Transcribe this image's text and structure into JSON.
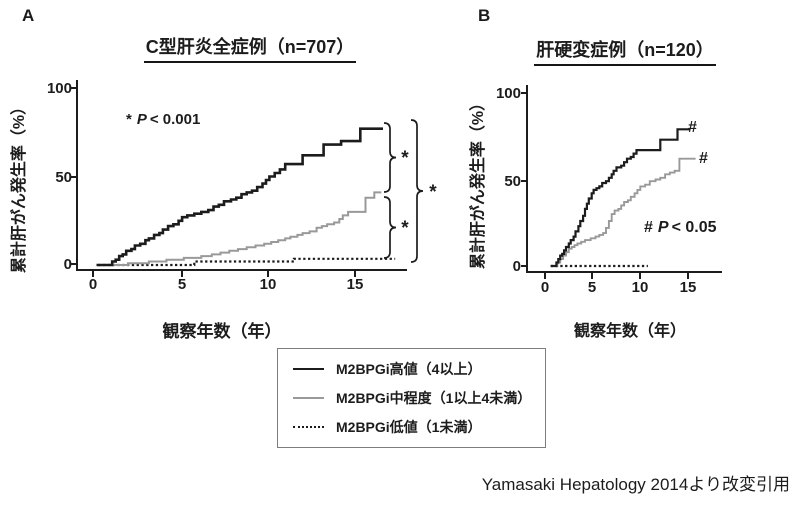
{
  "panel_a": {
    "letter": "A",
    "title": "C型肝炎全症例（n=707）",
    "p_note": {
      "marker": "*",
      "symbol": "P",
      "comparison": "< 0.001"
    },
    "bracket_stars": [
      "*",
      "*",
      "*"
    ]
  },
  "panel_b": {
    "letter": "B",
    "title": "肝硬変症例（n=120）",
    "p_note": {
      "marker": "#",
      "symbol": "P",
      "comparison": "< 0.05"
    },
    "curve_marks": {
      "high": "#",
      "mid": "#"
    }
  },
  "axes": {
    "x_label": "観察年数（年）",
    "y_label": "累計肝がん発生率（%）",
    "x_ticks": [
      "0",
      "5",
      "10",
      "15"
    ],
    "y_ticks": [
      "100",
      "50",
      "0"
    ]
  },
  "legend": {
    "items": [
      {
        "label": "M2BPGi高値（4以上）",
        "style": "solid-black"
      },
      {
        "label": "M2BPGi中程度（1以上4未満）",
        "style": "solid-gray"
      },
      {
        "label": "M2BPGi低値（1未満）",
        "style": "dotted-black"
      }
    ]
  },
  "citation": "Yamasaki Hepatology 2014より改変引用",
  "colors": {
    "black": "#1c1c1c",
    "gray": "#999999",
    "legend_border": "#7d7d7d"
  },
  "chart_data": [
    {
      "panel": "A",
      "type": "line",
      "subtype": "kaplan_meier_step",
      "title": "C型肝炎全症例（n=707）",
      "n": 707,
      "xlabel": "観察年数（年）",
      "ylabel": "累計肝がん発生率（%）",
      "xlim": [
        0,
        18
      ],
      "ylim": [
        0,
        100
      ],
      "xticks": [
        0,
        5,
        10,
        15
      ],
      "yticks": [
        0,
        50,
        100
      ],
      "grid": false,
      "legend_position": "below-figure",
      "annotations": [
        "* P < 0.001",
        "brackets: high vs mid *, mid vs low *, high vs low *"
      ],
      "series": [
        {
          "name": "M2BPGi高値（4以上）",
          "style": "solid",
          "color": "#1c1c1c",
          "points": [
            [
              0.2,
              0
            ],
            [
              0.9,
              0
            ],
            [
              1.1,
              2
            ],
            [
              1.3,
              3
            ],
            [
              1.5,
              5
            ],
            [
              1.7,
              6
            ],
            [
              1.9,
              8
            ],
            [
              2.2,
              9
            ],
            [
              2.4,
              11
            ],
            [
              2.7,
              12
            ],
            [
              3.0,
              14
            ],
            [
              3.2,
              15
            ],
            [
              3.5,
              17
            ],
            [
              3.8,
              18
            ],
            [
              4.0,
              20
            ],
            [
              4.3,
              22
            ],
            [
              4.6,
              23
            ],
            [
              4.9,
              25
            ],
            [
              5.1,
              27
            ],
            [
              5.4,
              28
            ],
            [
              5.8,
              29
            ],
            [
              6.2,
              30
            ],
            [
              6.6,
              31
            ],
            [
              6.9,
              33
            ],
            [
              7.2,
              34
            ],
            [
              7.5,
              36
            ],
            [
              7.9,
              37
            ],
            [
              8.2,
              38
            ],
            [
              8.5,
              40
            ],
            [
              8.8,
              41
            ],
            [
              9.1,
              42
            ],
            [
              9.4,
              44
            ],
            [
              9.7,
              46
            ],
            [
              9.9,
              48
            ],
            [
              10.1,
              50
            ],
            [
              10.4,
              52
            ],
            [
              10.7,
              54
            ],
            [
              11.0,
              57
            ],
            [
              12.0,
              57
            ],
            [
              12.0,
              62
            ],
            [
              13.2,
              62
            ],
            [
              13.2,
              68
            ],
            [
              14.2,
              68
            ],
            [
              14.2,
              70
            ],
            [
              15.3,
              70
            ],
            [
              15.3,
              77
            ],
            [
              16.6,
              77
            ]
          ]
        },
        {
          "name": "M2BPGi中程度（1以上4未満）",
          "style": "solid",
          "color": "#999999",
          "points": [
            [
              0.4,
              0
            ],
            [
              2.0,
              1
            ],
            [
              3.2,
              2
            ],
            [
              4.2,
              3
            ],
            [
              5.2,
              4
            ],
            [
              6.2,
              5
            ],
            [
              6.8,
              6
            ],
            [
              7.3,
              7
            ],
            [
              7.8,
              8
            ],
            [
              8.3,
              9
            ],
            [
              8.8,
              10
            ],
            [
              9.3,
              11
            ],
            [
              9.8,
              12
            ],
            [
              10.2,
              13
            ],
            [
              10.6,
              14
            ],
            [
              11.0,
              15
            ],
            [
              11.3,
              16
            ],
            [
              11.7,
              17
            ],
            [
              12.0,
              18
            ],
            [
              12.4,
              19
            ],
            [
              12.8,
              21
            ],
            [
              13.1,
              22
            ],
            [
              13.4,
              23
            ],
            [
              13.8,
              24
            ],
            [
              14.1,
              26
            ],
            [
              14.3,
              28
            ],
            [
              14.6,
              30
            ],
            [
              15.6,
              30
            ],
            [
              15.6,
              38
            ],
            [
              16.1,
              38
            ],
            [
              16.1,
              41
            ],
            [
              16.5,
              41
            ]
          ]
        },
        {
          "name": "M2BPGi低値（1未満）",
          "style": "dotted",
          "color": "#1c1c1c",
          "points": [
            [
              0.3,
              0
            ],
            [
              5.8,
              0
            ],
            [
              5.8,
              2
            ],
            [
              11.5,
              2
            ],
            [
              11.5,
              3.5
            ],
            [
              17.3,
              3.5
            ]
          ]
        }
      ]
    },
    {
      "panel": "B",
      "type": "line",
      "subtype": "kaplan_meier_step",
      "title": "肝硬変症例（n=120）",
      "n": 120,
      "xlabel": "観察年数（年）",
      "ylabel": "累計肝がん発生率（%）",
      "xlim": [
        0,
        17
      ],
      "ylim": [
        0,
        100
      ],
      "xticks": [
        0,
        5,
        10,
        15
      ],
      "yticks": [
        0,
        50,
        100
      ],
      "grid": false,
      "legend_position": "shared",
      "annotations": [
        "# P < 0.05",
        "# at end of high and mid curves"
      ],
      "series": [
        {
          "name": "M2BPGi高値（4以上）",
          "style": "solid",
          "color": "#1c1c1c",
          "points": [
            [
              0.6,
              0
            ],
            [
              1.1,
              0
            ],
            [
              1.2,
              2
            ],
            [
              1.4,
              4
            ],
            [
              1.6,
              6
            ],
            [
              1.8,
              7
            ],
            [
              2.0,
              9
            ],
            [
              2.2,
              11
            ],
            [
              2.5,
              13
            ],
            [
              2.7,
              15
            ],
            [
              3.0,
              17
            ],
            [
              3.2,
              20
            ],
            [
              3.5,
              23
            ],
            [
              3.7,
              26
            ],
            [
              4.0,
              29
            ],
            [
              4.2,
              33
            ],
            [
              4.4,
              36
            ],
            [
              4.6,
              39
            ],
            [
              4.9,
              42
            ],
            [
              5.1,
              44
            ],
            [
              5.4,
              45
            ],
            [
              5.7,
              46
            ],
            [
              6.0,
              48
            ],
            [
              6.4,
              49
            ],
            [
              6.7,
              51
            ],
            [
              7.0,
              53
            ],
            [
              7.2,
              55
            ],
            [
              7.5,
              57
            ],
            [
              8.0,
              58
            ],
            [
              8.3,
              60
            ],
            [
              8.6,
              62
            ],
            [
              9.0,
              63
            ],
            [
              9.3,
              65
            ],
            [
              9.6,
              67
            ],
            [
              12.1,
              67
            ],
            [
              12.1,
              73
            ],
            [
              13.9,
              73
            ],
            [
              13.9,
              79
            ],
            [
              15.2,
              79
            ]
          ]
        },
        {
          "name": "M2BPGi中程度（1以上4未満）",
          "style": "solid",
          "color": "#999999",
          "points": [
            [
              1.0,
              0
            ],
            [
              1.3,
              2
            ],
            [
              1.6,
              4
            ],
            [
              1.9,
              6
            ],
            [
              2.2,
              8
            ],
            [
              2.5,
              10
            ],
            [
              2.8,
              11
            ],
            [
              3.1,
              12
            ],
            [
              3.4,
              13
            ],
            [
              3.8,
              14
            ],
            [
              4.2,
              15
            ],
            [
              4.8,
              16
            ],
            [
              5.3,
              17
            ],
            [
              5.7,
              18
            ],
            [
              6.1,
              19
            ],
            [
              6.4,
              22
            ],
            [
              6.7,
              26
            ],
            [
              7.0,
              30
            ],
            [
              7.3,
              32
            ],
            [
              7.7,
              33
            ],
            [
              8.0,
              35
            ],
            [
              8.3,
              37
            ],
            [
              8.7,
              38
            ],
            [
              9.0,
              40
            ],
            [
              9.4,
              42
            ],
            [
              9.7,
              44
            ],
            [
              10.0,
              46
            ],
            [
              10.5,
              47
            ],
            [
              11.0,
              49
            ],
            [
              11.6,
              50
            ],
            [
              12.1,
              51
            ],
            [
              12.6,
              53
            ],
            [
              13.1,
              54
            ],
            [
              13.6,
              55
            ],
            [
              14.1,
              55
            ],
            [
              14.1,
              62
            ],
            [
              15.8,
              62
            ]
          ]
        },
        {
          "name": "M2BPGi低値（1未満）",
          "style": "dotted",
          "color": "#1c1c1c",
          "points": [
            [
              0.6,
              0
            ],
            [
              10.8,
              0
            ]
          ]
        }
      ]
    }
  ]
}
